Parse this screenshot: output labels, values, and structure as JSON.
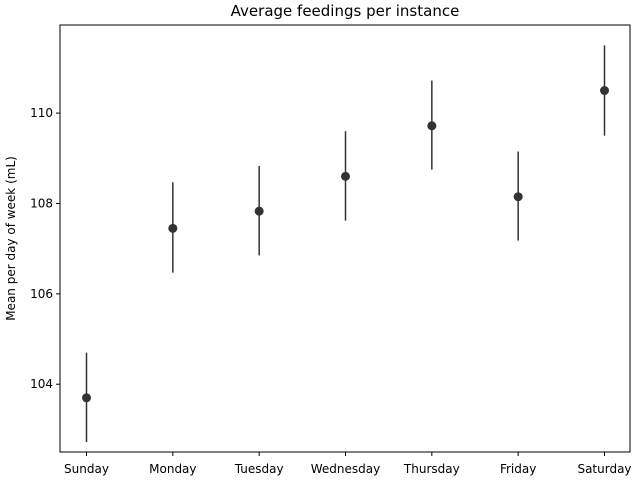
{
  "chart_data": {
    "type": "scatter",
    "title": "Average feedings per instance",
    "xlabel": "",
    "ylabel": "Mean per day of week (mL)",
    "categories": [
      "Sunday",
      "Monday",
      "Tuesday",
      "Wednesday",
      "Thursday",
      "Friday",
      "Saturday"
    ],
    "values": [
      103.7,
      107.45,
      107.83,
      108.6,
      109.72,
      108.15,
      110.5
    ],
    "error_low": [
      102.72,
      106.47,
      106.85,
      107.62,
      108.75,
      107.18,
      109.5
    ],
    "error_high": [
      104.7,
      108.47,
      108.83,
      109.6,
      110.72,
      109.15,
      111.5
    ],
    "ylim": [
      102.5,
      111.95
    ],
    "yticks": [
      104,
      106,
      108,
      110
    ],
    "grid": false,
    "marker_color": "#333333",
    "errorbar_color": "#333333"
  }
}
